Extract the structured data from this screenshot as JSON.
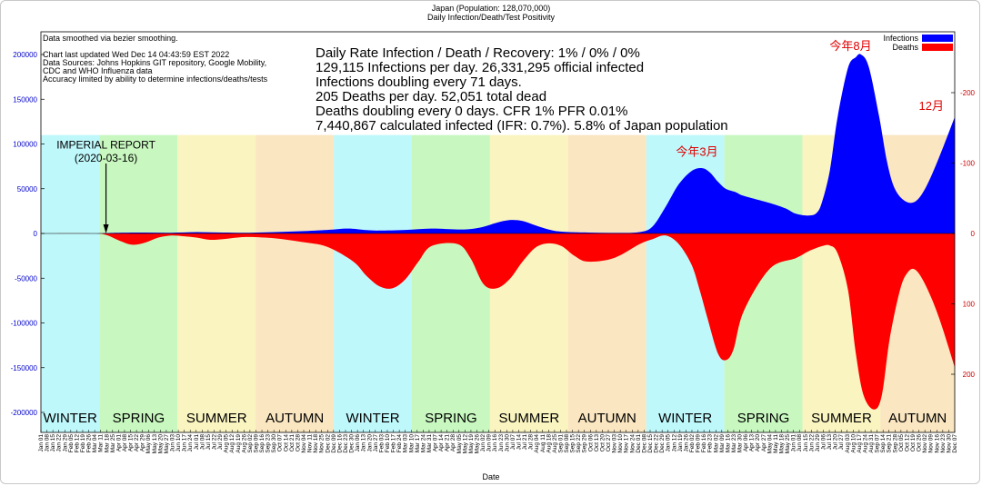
{
  "chart_data": {
    "type": "area",
    "title": "Japan (Population: 128,070,000)",
    "subtitle": "Daily Infection/Death/Test Positivity",
    "xlabel": "Date",
    "ylabel_left": "",
    "ylabel_right": "",
    "ylim_left": [
      -220000,
      220000
    ],
    "ylim_right": [
      260,
      -260
    ],
    "left_ticks": [
      200000,
      150000,
      100000,
      50000,
      0,
      -50000,
      -100000,
      -150000,
      -200000
    ],
    "left_tick_labels": [
      "200000",
      "150000",
      "100000",
      "50000",
      "0",
      "-50000",
      "-100000",
      "-150000",
      "-200000"
    ],
    "right_ticks": [
      -200,
      -100,
      0,
      100,
      200
    ],
    "right_tick_labels": [
      "-200",
      "-100",
      "0",
      "100",
      "200"
    ],
    "x_range_months": [
      0,
      35.1
    ],
    "x_tick_labels": [
      "Jan 01",
      "Jan 08",
      "Jan 15",
      "Jan 22",
      "Jan 29",
      "Feb 05",
      "Feb 12",
      "Feb 19",
      "Feb 26",
      "Mar 04",
      "Mar 11",
      "Mar 18",
      "Mar 25",
      "Apr 01",
      "Apr 08",
      "Apr 15",
      "Apr 22",
      "Apr 29",
      "May 06",
      "May 13",
      "May 20",
      "May 27",
      "Jun 03",
      "Jun 10",
      "Jun 17",
      "Jun 24",
      "Jul 01",
      "Jul 08",
      "Jul 15",
      "Jul 22",
      "Jul 29",
      "Aug 05",
      "Aug 12",
      "Aug 19",
      "Aug 26",
      "Sep 02",
      "Sep 09",
      "Sep 16",
      "Sep 23",
      "Sep 30",
      "Oct 07",
      "Oct 14",
      "Oct 21",
      "Oct 28",
      "Nov 04",
      "Nov 11",
      "Nov 18",
      "Nov 25",
      "Dec 02",
      "Dec 09",
      "Dec 16",
      "Dec 23",
      "Dec 30",
      "Jan 06",
      "Jan 13",
      "Jan 20",
      "Jan 27",
      "Feb 03",
      "Feb 10",
      "Feb 17",
      "Feb 24",
      "Mar 03",
      "Mar 10",
      "Mar 17",
      "Mar 24",
      "Mar 31",
      "Apr 07",
      "Apr 14",
      "Apr 21",
      "Apr 28",
      "May 05",
      "May 12",
      "May 19",
      "May 26",
      "Jun 02",
      "Jun 09",
      "Jun 16",
      "Jun 23",
      "Jun 30",
      "Jul 07",
      "Jul 14",
      "Jul 21",
      "Jul 28",
      "Aug 04",
      "Aug 11",
      "Aug 18",
      "Aug 25",
      "Sep 01",
      "Sep 08",
      "Sep 15",
      "Sep 22",
      "Sep 29",
      "Oct 06",
      "Oct 13",
      "Oct 20",
      "Oct 27",
      "Nov 03",
      "Nov 10",
      "Nov 17",
      "Nov 24",
      "Dec 01",
      "Dec 08",
      "Dec 15",
      "Dec 22",
      "Dec 29",
      "Jan 05",
      "Jan 12",
      "Jan 19",
      "Jan 26",
      "Feb 02",
      "Feb 09",
      "Feb 16",
      "Feb 23",
      "Mar 02",
      "Mar 09",
      "Mar 16",
      "Mar 23",
      "Mar 30",
      "Apr 06",
      "Apr 13",
      "Apr 20",
      "Apr 27",
      "May 04",
      "May 11",
      "May 18",
      "May 25",
      "Jun 01",
      "Jun 08",
      "Jun 15",
      "Jun 22",
      "Jun 29",
      "Jul 06",
      "Jul 13",
      "Jul 20",
      "Jul 27",
      "Aug 03",
      "Aug 10",
      "Aug 17",
      "Aug 24",
      "Aug 31",
      "Sep 07",
      "Sep 14",
      "Sep 21",
      "Sep 28",
      "Oct 05",
      "Oct 12",
      "Oct 19",
      "Oct 26",
      "Nov 02",
      "Nov 09",
      "Nov 16",
      "Nov 23",
      "Nov 30",
      "Dec 07"
    ],
    "seasons": [
      {
        "label": "WINTER",
        "start": 0,
        "end": 2.25,
        "color": "#bff8fb"
      },
      {
        "label": "SPRING",
        "start": 2.25,
        "end": 5.25,
        "color": "#c8f8c0"
      },
      {
        "label": "SUMMER",
        "start": 5.25,
        "end": 8.25,
        "color": "#faf4c0"
      },
      {
        "label": "AUTUMN",
        "start": 8.25,
        "end": 11.25,
        "color": "#fae6c0"
      },
      {
        "label": "WINTER",
        "start": 11.25,
        "end": 14.25,
        "color": "#bff8fb"
      },
      {
        "label": "SPRING",
        "start": 14.25,
        "end": 17.25,
        "color": "#c8f8c0"
      },
      {
        "label": "SUMMER",
        "start": 17.25,
        "end": 20.25,
        "color": "#faf4c0"
      },
      {
        "label": "AUTUMN",
        "start": 20.25,
        "end": 23.25,
        "color": "#fae6c0"
      },
      {
        "label": "WINTER",
        "start": 23.25,
        "end": 26.25,
        "color": "#bff8fb"
      },
      {
        "label": "SPRING",
        "start": 26.25,
        "end": 29.25,
        "color": "#c8f8c0"
      },
      {
        "label": "SUMMER",
        "start": 29.25,
        "end": 32.25,
        "color": "#faf4c0"
      },
      {
        "label": "AUTUMN",
        "start": 32.25,
        "end": 35.1,
        "color": "#fae6c0"
      }
    ],
    "season_band_top_value": 110000,
    "series": [
      {
        "name": "Infections",
        "color": "#0000ff",
        "axis": "left",
        "x": [
          0,
          2,
          2.5,
          3,
          4,
          5,
          6,
          7,
          8,
          9,
          10,
          11,
          11.8,
          12.5,
          13,
          14,
          15,
          16,
          16.5,
          17,
          17.5,
          18,
          18.5,
          19,
          19.5,
          20,
          21,
          22,
          23,
          23.5,
          24,
          24.5,
          25,
          25.4,
          25.7,
          26,
          26.3,
          26.7,
          27,
          28,
          28.6,
          29,
          29.5,
          29.8,
          30,
          30.3,
          30.6,
          31,
          31.3,
          31.5,
          31.8,
          32.2,
          32.5,
          32.8,
          33.2,
          33.6,
          34,
          34.5,
          35.1
        ],
        "values": [
          0,
          0,
          400,
          800,
          1000,
          800,
          1500,
          1000,
          800,
          1500,
          2500,
          4000,
          5500,
          3800,
          3200,
          4000,
          5500,
          4500,
          5000,
          7500,
          12000,
          15000,
          14000,
          9000,
          4500,
          2000,
          1000,
          600,
          1500,
          8000,
          30000,
          55000,
          70000,
          73000,
          68000,
          58000,
          50000,
          46000,
          42000,
          34000,
          28000,
          22000,
          20000,
          23000,
          35000,
          70000,
          130000,
          185000,
          197000,
          200000,
          186000,
          130000,
          80000,
          50000,
          36000,
          36000,
          52000,
          85000,
          130000
        ]
      },
      {
        "name": "Deaths",
        "color": "#ff0000",
        "axis": "right",
        "x": [
          0,
          2,
          2.5,
          3,
          3.5,
          4,
          4.5,
          5,
          5.5,
          6,
          6.5,
          7,
          7.5,
          8,
          9,
          10,
          11,
          12,
          12.5,
          13,
          13.5,
          14,
          14.5,
          15,
          16,
          16.5,
          17,
          17.5,
          18,
          18.5,
          19,
          19.5,
          20,
          20.5,
          21,
          22,
          23,
          23.5,
          24,
          24.5,
          25,
          25.3,
          25.6,
          26,
          26.3,
          26.6,
          27,
          28,
          29,
          29.5,
          30,
          30.3,
          30.6,
          31,
          31.3,
          31.6,
          32,
          32.3,
          32.6,
          33,
          33.3,
          33.6,
          34,
          34.5,
          35.1
        ],
        "values": [
          0,
          0,
          2,
          10,
          16,
          13,
          6,
          3,
          4,
          6,
          9,
          8,
          6,
          5,
          7,
          12,
          19,
          40,
          60,
          75,
          78,
          65,
          40,
          18,
          15,
          35,
          72,
          78,
          65,
          40,
          20,
          14,
          18,
          32,
          40,
          35,
          15,
          8,
          3,
          15,
          45,
          80,
          120,
          170,
          180,
          165,
          110,
          50,
          35,
          25,
          18,
          17,
          28,
          80,
          170,
          230,
          250,
          230,
          150,
          80,
          55,
          52,
          75,
          120,
          190
        ]
      }
    ],
    "legend": {
      "position": "top-right",
      "entries": [
        "Infections",
        "Deaths"
      ]
    },
    "notes_left": [
      "Data smoothed via bezier smoothing.",
      "Chart last updated Wed Dec 14 04:43:59 EST 2022",
      "Data Sources: Johns Hopkins GIT repository, Google Mobility,",
      "CDC and WHO Influenza data",
      "Accuracy limited by ability to determine infections/deaths/tests"
    ],
    "stats": [
      "Daily Rate Infection / Death / Recovery: 1% / 0% / 0%",
      "129,115 Infections per day.  26,331,295 official infected",
      "Infections doubling every 71 days.",
      "205 Deaths per day.  52,051 total dead",
      "Deaths doubling every 0 days.  CFR 1%  PFR 0.01%",
      "7,440,867 calculated infected (IFR: 0.7%).  5.8% of Japan population"
    ],
    "annotations": [
      {
        "text": "IMPERIAL REPORT",
        "x": 2.5,
        "value": 95000,
        "axis": "left"
      },
      {
        "text": "(2020-03-16)",
        "x": 2.5,
        "value": 80000,
        "axis": "left"
      },
      {
        "text": "今年3月",
        "x": 25.2,
        "value": 87000,
        "axis": "left",
        "color": "#e00000"
      },
      {
        "text": "今年8月",
        "x": 31.1,
        "value": 205000,
        "axis": "left",
        "color": "#e00000"
      },
      {
        "text": "12月",
        "x": 34.2,
        "value": 138000,
        "axis": "left",
        "color": "#e00000"
      }
    ],
    "imperial_report_x": 2.5
  }
}
